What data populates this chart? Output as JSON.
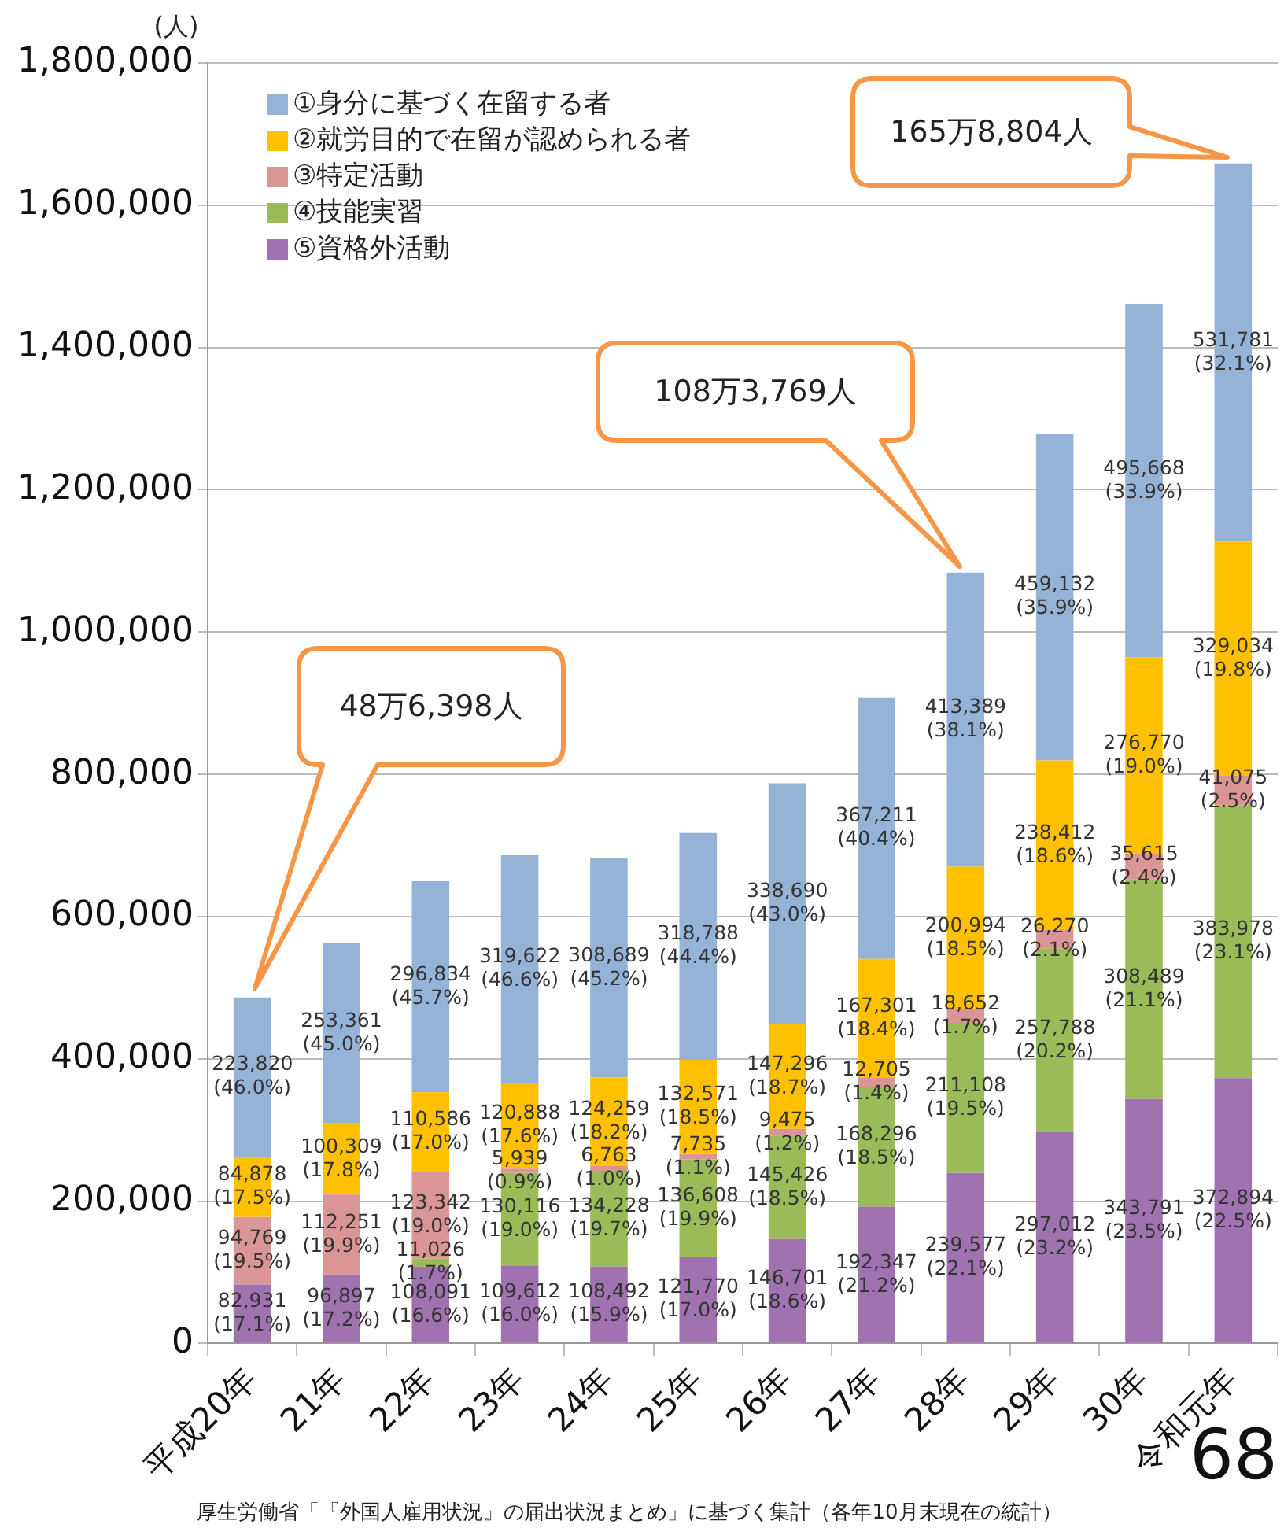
{
  "chart_data": {
    "type": "bar",
    "stacked": true,
    "ylabel": "(人)",
    "categories": [
      "平成20年",
      "21年",
      "22年",
      "23年",
      "24年",
      "25年",
      "26年",
      "27年",
      "28年",
      "29年",
      "30年",
      "令和元年"
    ],
    "series": [
      {
        "name": "⑤資格外活動",
        "color": "#a072b0",
        "values": [
          82931,
          96897,
          108091,
          109612,
          108492,
          121770,
          146701,
          192347,
          239577,
          297012,
          343791,
          372894
        ],
        "value_labels": [
          "82,931\n(17.1%)",
          "96,897\n(17.2%)",
          "108,091\n(16.6%)",
          "109,612\n(16.0%)",
          "108,492\n(15.9%)",
          "121,770\n(17.0%)",
          "146,701\n(18.6%)",
          "192,347\n(21.2%)",
          "239,577\n(22.1%)",
          "297,012\n(23.2%)",
          "343,791\n(23.5%)",
          "372,894\n(22.5%)"
        ]
      },
      {
        "name": "④技能実習",
        "color": "#9bbb59",
        "values": [
          null,
          null,
          11026,
          130116,
          134228,
          136608,
          145426,
          168296,
          211108,
          257788,
          308489,
          383978
        ],
        "value_labels": [
          null,
          null,
          "11,026\n(1.7%)",
          "130,116\n(19.0%)",
          "134,228\n(19.7%)",
          "136,608\n(19.9%)",
          "145,426\n(18.5%)",
          "168,296\n(18.5%)",
          "211,108\n(19.5%)",
          "257,788\n(20.2%)",
          "308,489\n(21.1%)",
          "383,978\n(23.1%)"
        ]
      },
      {
        "name": "③特定活動",
        "color": "#d99694",
        "values": [
          94769,
          112251,
          123342,
          5939,
          6763,
          7735,
          9475,
          12705,
          18652,
          26270,
          35615,
          41075
        ],
        "value_labels": [
          "94,769\n(19.5%)",
          "112,251\n(19.9%)",
          "123,342\n(19.0%)",
          "5,939\n(0.9%)",
          "6,763\n(1.0%)",
          "7,735\n(1.1%)",
          "9,475\n(1.2%)",
          "12,705\n(1.4%)",
          "18,652\n(1.7%)",
          "26,270\n(2.1%)",
          "35,615\n(2.4%)",
          "41,075\n(2.5%)"
        ]
      },
      {
        "name": "②就労目的で在留が認められる者",
        "color": "#ffc000",
        "values": [
          84878,
          100309,
          110586,
          120888,
          124259,
          132571,
          147296,
          167301,
          200994,
          238412,
          276770,
          329034
        ],
        "value_labels": [
          "84,878\n(17.5%)",
          "100,309\n(17.8%)",
          "110,586\n(17.0%)",
          "120,888\n(17.6%)",
          "124,259\n(18.2%)",
          "132,571\n(18.5%)",
          "147,296\n(18.7%)",
          "167,301\n(18.4%)",
          "200,994\n(18.5%)",
          "238,412\n(18.6%)",
          "276,770\n(19.0%)",
          "329,034\n(19.8%)"
        ]
      },
      {
        "name": "①身分に基づく在留する者",
        "color": "#95b3d7",
        "values": [
          223820,
          253361,
          296834,
          319622,
          308689,
          318788,
          338690,
          367211,
          413389,
          459132,
          495668,
          531781
        ],
        "value_labels": [
          "223,820\n(46.0%)",
          "253,361\n(45.0%)",
          "296,834\n(45.7%)",
          "319,622\n(46.6%)",
          "308,689\n(45.2%)",
          "318,788\n(44.4%)",
          "338,690\n(43.0%)",
          "367,211\n(40.4%)",
          "413,389\n(38.1%)",
          "459,132\n(35.9%)",
          "495,668\n(33.9%)",
          "531,781\n(32.1%)"
        ]
      }
    ],
    "ylim": [
      0,
      1800000
    ],
    "yticks": [
      {
        "value": 0,
        "label": "0"
      },
      {
        "value": 200000,
        "label": "200,000"
      },
      {
        "value": 400000,
        "label": "400,000"
      },
      {
        "value": 600000,
        "label": "600,000"
      },
      {
        "value": 800000,
        "label": "800,000"
      },
      {
        "value": 1000000,
        "label": "1,000,000"
      },
      {
        "value": 1200000,
        "label": "1,200,000"
      },
      {
        "value": 1400000,
        "label": "1,400,000"
      },
      {
        "value": 1600000,
        "label": "1,600,000"
      },
      {
        "value": 1800000,
        "label": "1,800,000"
      }
    ],
    "grid": "y",
    "legend": "top left",
    "annotations": [
      "48万6,398人",
      "108万3,769人",
      "165万8,804人",
      "厚生労働省「『外国人雇用状況』の届出状況まとめ」に基づく集計（各年10月末現在の統計）",
      "68"
    ]
  }
}
